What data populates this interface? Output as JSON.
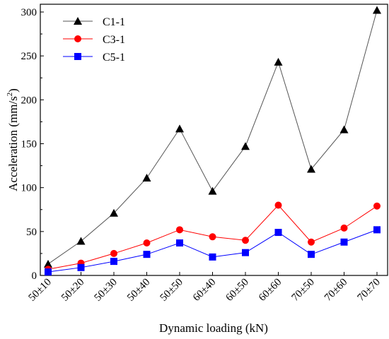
{
  "chart_data": {
    "type": "line",
    "title": "",
    "xlabel": "Dynamic loading (kN)",
    "ylabel": {
      "main": "Acceleration (mm/s",
      "sup": "2",
      "close": ")"
    },
    "categories": [
      "50±10",
      "50±20",
      "50±30",
      "50±40",
      "50±50",
      "60±40",
      "60±50",
      "60±60",
      "70±50",
      "70±60",
      "70±70"
    ],
    "ylim": [
      0,
      300
    ],
    "yticks": [
      "0",
      "50",
      "100",
      "150",
      "200",
      "250",
      "300"
    ],
    "grid": false,
    "legend_position": "top-left",
    "series": [
      {
        "name": "C1-1",
        "color": "#000000",
        "line_color": "#555555",
        "marker": "triangle",
        "values": [
          13,
          39,
          71,
          111,
          167,
          96,
          147,
          243,
          121,
          166,
          302
        ]
      },
      {
        "name": "C3-1",
        "color": "#ff0000",
        "line_color": "#ff0000",
        "marker": "circle",
        "values": [
          7,
          14,
          25,
          37,
          52,
          44,
          40,
          80,
          38,
          54,
          79
        ]
      },
      {
        "name": "C5-1",
        "color": "#0000ff",
        "line_color": "#0000ff",
        "marker": "square",
        "values": [
          4,
          9,
          16,
          24,
          37,
          21,
          26,
          49,
          24,
          38,
          52
        ]
      }
    ]
  }
}
